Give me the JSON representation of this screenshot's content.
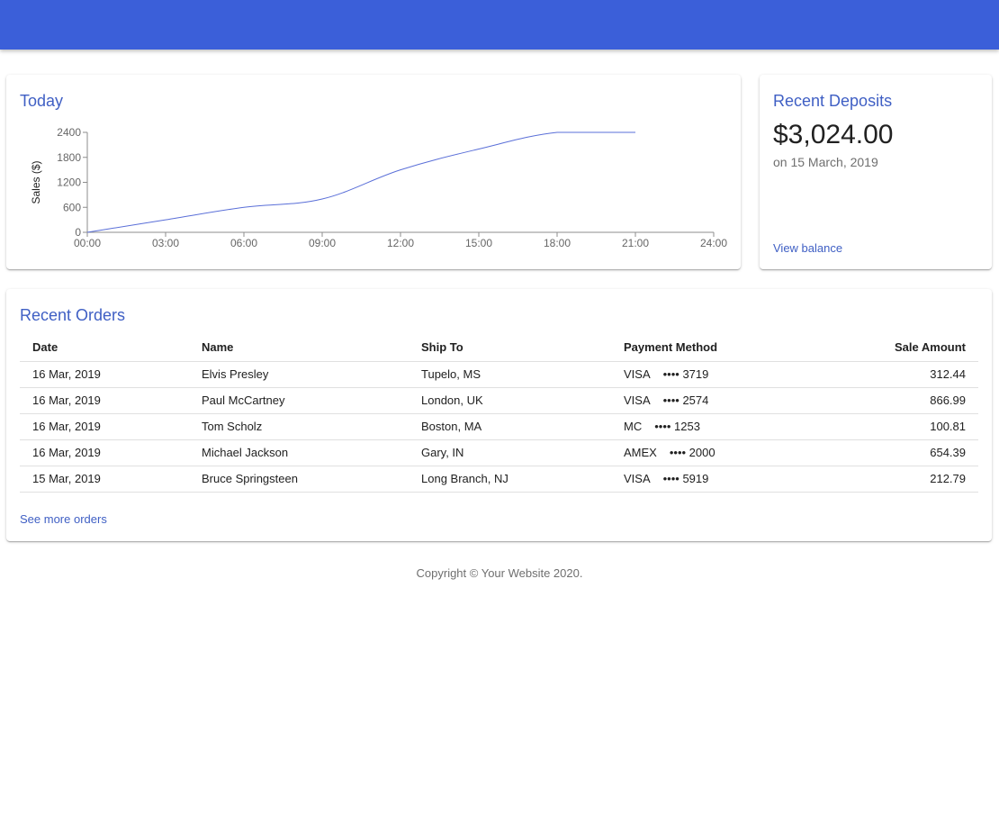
{
  "colors": {
    "app_bar": "#3b5fd9",
    "accent": "#3f5fc4",
    "line": "#5a6fd8"
  },
  "chart_card": {
    "title": "Today"
  },
  "chart_data": {
    "type": "line",
    "title": "",
    "xlabel": "",
    "ylabel": "Sales ($)",
    "x_ticks": [
      "00:00",
      "03:00",
      "06:00",
      "09:00",
      "12:00",
      "15:00",
      "18:00",
      "21:00",
      "24:00"
    ],
    "y_ticks": [
      0,
      600,
      1200,
      1800,
      2400
    ],
    "xlim": [
      0,
      24
    ],
    "ylim": [
      0,
      2400
    ],
    "grid": false,
    "series": [
      {
        "x": [
          0,
          3,
          6,
          9,
          12,
          15,
          18,
          21
        ],
        "values": [
          0,
          300,
          600,
          800,
          1500,
          2000,
          2400,
          2400
        ]
      }
    ]
  },
  "deposits_card": {
    "title": "Recent Deposits",
    "amount": "$3,024.00",
    "date": "on 15 March, 2019",
    "link": "View balance"
  },
  "orders_card": {
    "title": "Recent Orders",
    "columns": [
      "Date",
      "Name",
      "Ship To",
      "Payment Method",
      "Sale Amount"
    ],
    "rows": [
      {
        "date": "16 Mar, 2019",
        "name": "Elvis Presley",
        "ship_to": "Tupelo, MS",
        "payment_type": "VISA",
        "payment_card": "•••• 3719",
        "amount": "312.44"
      },
      {
        "date": "16 Mar, 2019",
        "name": "Paul McCartney",
        "ship_to": "London, UK",
        "payment_type": "VISA",
        "payment_card": "•••• 2574",
        "amount": "866.99"
      },
      {
        "date": "16 Mar, 2019",
        "name": "Tom Scholz",
        "ship_to": "Boston, MA",
        "payment_type": "MC",
        "payment_card": "•••• 1253",
        "amount": "100.81"
      },
      {
        "date": "16 Mar, 2019",
        "name": "Michael Jackson",
        "ship_to": "Gary, IN",
        "payment_type": "AMEX",
        "payment_card": "•••• 2000",
        "amount": "654.39"
      },
      {
        "date": "15 Mar, 2019",
        "name": "Bruce Springsteen",
        "ship_to": "Long Branch, NJ",
        "payment_type": "VISA",
        "payment_card": "•••• 5919",
        "amount": "212.79"
      }
    ],
    "link": "See more orders"
  },
  "footer": {
    "copyright": "Copyright © Your Website 2020."
  }
}
